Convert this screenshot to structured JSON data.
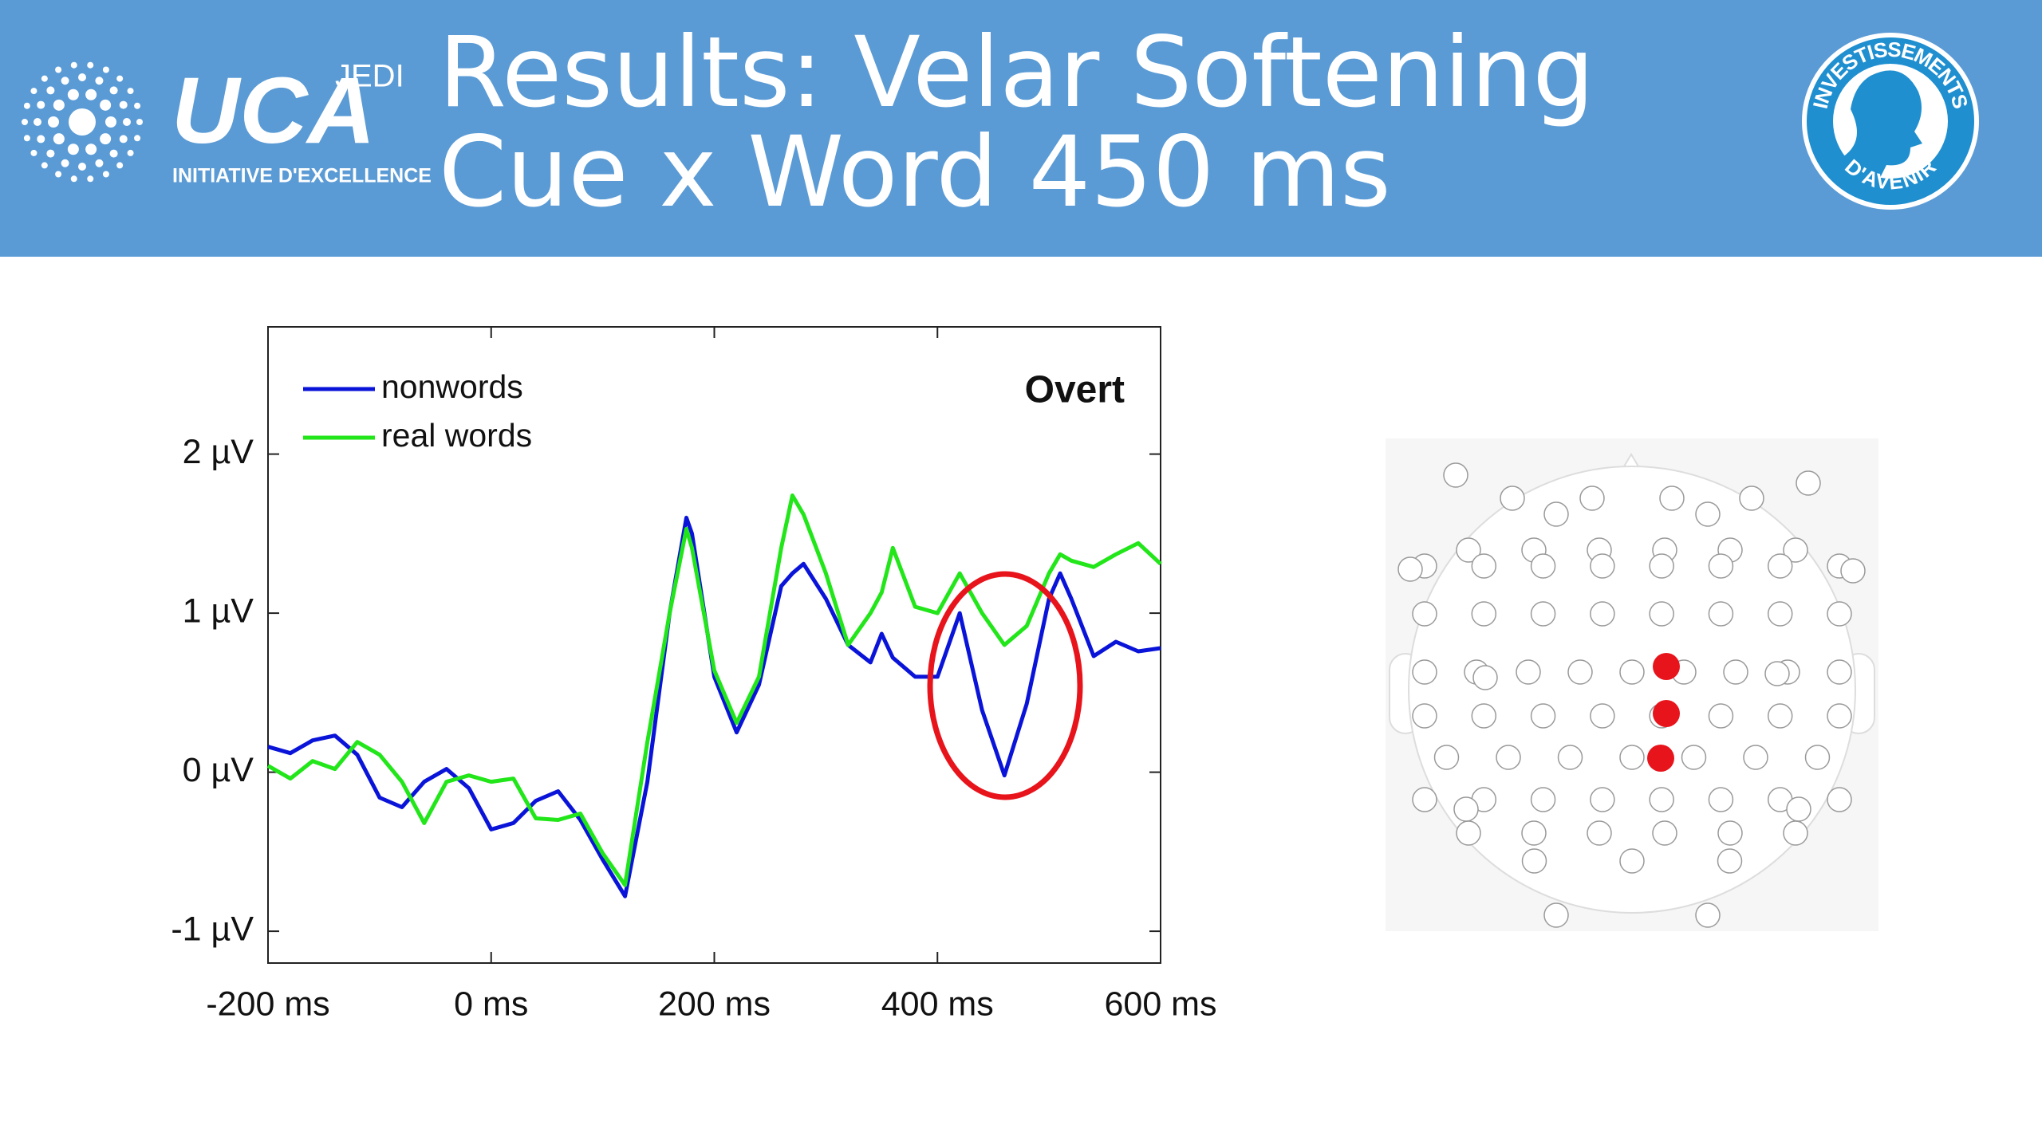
{
  "header": {
    "title_line1": "Results: Velar Softening",
    "title_line2": "Cue x Word 450 ms",
    "logo_main": "UCA",
    "logo_super": "JEDI",
    "logo_sub": "INITIATIVE D'EXCELLENCE",
    "badge_top": "INVESTISSEMENTS",
    "badge_bottom": "D'AVENIR"
  },
  "chart_data": {
    "type": "line",
    "annotation": "Overt",
    "legend": "upper left",
    "x": [
      -200,
      -180,
      -160,
      -140,
      -120,
      -100,
      -80,
      -60,
      -40,
      -20,
      0,
      20,
      40,
      60,
      80,
      100,
      120,
      140,
      160,
      175,
      180,
      200,
      220,
      240,
      260,
      270,
      280,
      300,
      320,
      340,
      350,
      360,
      380,
      400,
      420,
      440,
      460,
      480,
      500,
      510,
      520,
      540,
      560,
      580,
      600
    ],
    "series": [
      {
        "name": "nonwords",
        "color": "#0a14d8",
        "values": [
          0.16,
          0.12,
          0.2,
          0.23,
          0.11,
          -0.16,
          -0.22,
          -0.06,
          0.02,
          -0.1,
          -0.36,
          -0.32,
          -0.18,
          -0.12,
          -0.3,
          -0.55,
          -0.78,
          -0.06,
          1.0,
          1.6,
          1.5,
          0.6,
          0.25,
          0.55,
          1.17,
          1.25,
          1.31,
          1.09,
          0.8,
          0.69,
          0.87,
          0.72,
          0.6,
          0.6,
          1.0,
          0.39,
          -0.02,
          0.43,
          1.09,
          1.25,
          1.09,
          0.73,
          0.82,
          0.76,
          0.78
        ]
      },
      {
        "name": "real words",
        "color": "#22e61a",
        "values": [
          0.04,
          -0.04,
          0.07,
          0.02,
          0.19,
          0.11,
          -0.06,
          -0.32,
          -0.06,
          -0.02,
          -0.06,
          -0.04,
          -0.29,
          -0.3,
          -0.26,
          -0.51,
          -0.71,
          0.19,
          1.0,
          1.53,
          1.41,
          0.64,
          0.31,
          0.6,
          1.41,
          1.74,
          1.62,
          1.25,
          0.8,
          1.0,
          1.13,
          1.41,
          1.04,
          1.0,
          1.25,
          1.0,
          0.8,
          0.92,
          1.25,
          1.37,
          1.33,
          1.29,
          1.37,
          1.44,
          1.31
        ]
      }
    ],
    "xlim": [
      -200,
      600
    ],
    "xticks": [
      {
        "value": -200,
        "label": "-200 ms"
      },
      {
        "value": 0,
        "label": "0 ms"
      },
      {
        "value": 200,
        "label": "200 ms"
      },
      {
        "value": 400,
        "label": "400 ms"
      },
      {
        "value": 600,
        "label": "600 ms"
      }
    ],
    "ylim": [
      -1.2,
      2.8
    ],
    "yticks": [
      {
        "value": -1,
        "label": "-1 µV"
      },
      {
        "value": 0,
        "label": "0 µV"
      },
      {
        "value": 1,
        "label": "1 µV"
      },
      {
        "value": 2,
        "label": "2 µV"
      }
    ]
  }
}
